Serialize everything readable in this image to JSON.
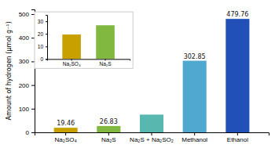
{
  "chart_data": [
    {
      "type": "bar",
      "categories": [
        "Na₂SO₄",
        "Na₂S",
        "Na₂S + Na₂SO₂",
        "Methanol",
        "Ethanol"
      ],
      "values": [
        19.46,
        26.83,
        75.0,
        302.85,
        479.76
      ],
      "colors": [
        "#c8a000",
        "#80b840",
        "#58b8b0",
        "#50a8d0",
        "#2050b8"
      ],
      "data_labels": true,
      "value_labels": [
        "19.46",
        "26.83",
        null,
        "302.85",
        "479.76"
      ],
      "ylabel": "Amount of hydrogen (μmol g⁻¹)",
      "ylim": [
        0,
        520
      ],
      "yticks": [
        0,
        100,
        200,
        300,
        400,
        500
      ]
    },
    {
      "type": "bar",
      "categories": [
        "Na₂SO₄",
        "Na₂S"
      ],
      "values": [
        19.46,
        26.83
      ],
      "colors": [
        "#c8a000",
        "#80b840"
      ],
      "ylim": [
        0,
        35
      ],
      "yticks": [
        0,
        10,
        20,
        30
      ]
    }
  ]
}
